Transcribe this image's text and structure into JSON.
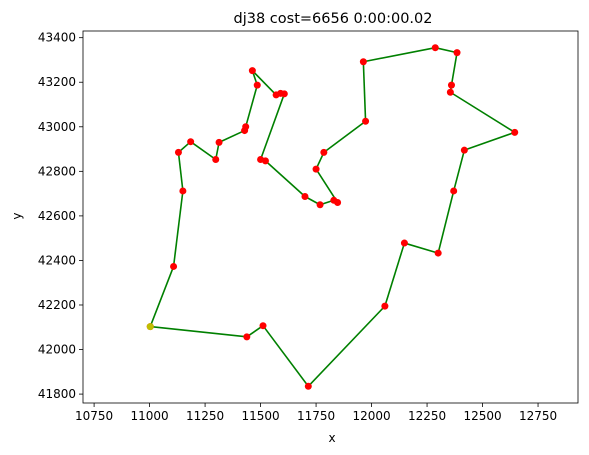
{
  "chart_data": {
    "type": "line",
    "title": "dj38 cost=6656 0:00:00.02",
    "xlabel": "x",
    "ylabel": "y",
    "xlim": [
      10700,
      12930
    ],
    "ylim": [
      41760,
      43430
    ],
    "xticks": [
      10750,
      11000,
      11250,
      11500,
      11750,
      12000,
      12250,
      12500,
      12750
    ],
    "yticks": [
      41800,
      42000,
      42200,
      42400,
      42600,
      42800,
      43000,
      43200,
      43400
    ],
    "grid": false,
    "legend": "none",
    "colors": {
      "route": "#008000",
      "city": "#ff0000",
      "start": "#bfbf00"
    },
    "start": {
      "x": 11003,
      "y": 42103
    },
    "series": [
      {
        "values": [
          [
            11003,
            42103
          ],
          [
            11108,
            42373
          ],
          [
            11150,
            42712
          ],
          [
            11130,
            42885
          ],
          [
            11185,
            42933
          ],
          [
            11298,
            42853
          ],
          [
            11313,
            42930
          ],
          [
            11428,
            42983
          ],
          [
            11433,
            43000
          ],
          [
            11485,
            43187
          ],
          [
            11463,
            43252
          ],
          [
            11570,
            43143
          ],
          [
            11590,
            43150
          ],
          [
            11607,
            43148
          ],
          [
            11500,
            42853
          ],
          [
            11522,
            42847
          ],
          [
            11700,
            42687
          ],
          [
            11768,
            42650
          ],
          [
            11830,
            42670
          ],
          [
            11847,
            42660
          ],
          [
            11750,
            42810
          ],
          [
            11785,
            42885
          ],
          [
            11973,
            43025
          ],
          [
            11963,
            43292
          ],
          [
            12287,
            43355
          ],
          [
            12385,
            43333
          ],
          [
            12360,
            43187
          ],
          [
            12355,
            43155
          ],
          [
            12645,
            42975
          ],
          [
            12418,
            42895
          ],
          [
            12370,
            42712
          ],
          [
            12300,
            42433
          ],
          [
            12148,
            42478
          ],
          [
            12060,
            42195
          ],
          [
            11715,
            41835
          ],
          [
            11511,
            42107
          ],
          [
            11438,
            42057
          ],
          [
            11003,
            42103
          ]
        ]
      }
    ]
  }
}
